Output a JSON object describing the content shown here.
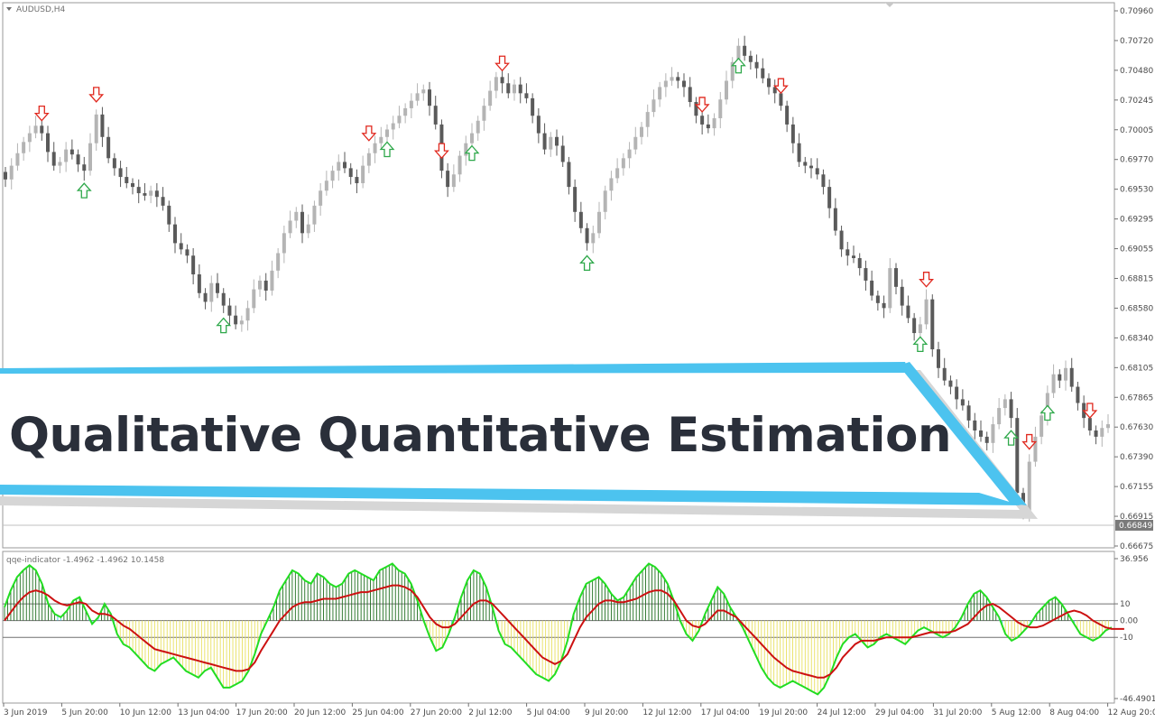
{
  "window": {
    "symbol_label": "AUDUSD,H4",
    "indicator_label": "qqe-indicator -1.4962 -1.4962 10.1458"
  },
  "banner": {
    "title": "Qualitative Quantitative Estimation"
  },
  "price_axis": {
    "ticks": [
      "0.70960",
      "0.70720",
      "0.70480",
      "0.70245",
      "0.70005",
      "0.69770",
      "0.69530",
      "0.69295",
      "0.69055",
      "0.68815",
      "0.68580",
      "0.68340",
      "0.68105",
      "0.67865",
      "0.67630",
      "0.67390",
      "0.67155",
      "0.66915",
      "0.66675"
    ],
    "current_price": "0.66849"
  },
  "indicator_axis": {
    "ticks": [
      "36.956",
      "10",
      "0.00",
      "-10",
      "-46.4901"
    ]
  },
  "time_axis": {
    "labels": [
      "3 Jun 2019",
      "5 Jun 20:00",
      "10 Jun 12:00",
      "13 Jun 04:00",
      "17 Jun 20:00",
      "20 Jun 12:00",
      "25 Jun 04:00",
      "27 Jun 20:00",
      "2 Jul 12:00",
      "5 Jul 04:00",
      "9 Jul 20:00",
      "12 Jul 12:00",
      "17 Jul 04:00",
      "19 Jul 20:00",
      "24 Jul 12:00",
      "29 Jul 04:00",
      "31 Jul 20:00",
      "5 Aug 12:00",
      "8 Aug 04:00",
      "12 Aug 20:00"
    ]
  },
  "colors": {
    "banner_accent": "#4cc3ef",
    "banner_text": "#2a2f3a",
    "bull_candle": "#b4b4b4",
    "bear_candle": "#5a5a5a",
    "up_arrow": "#2ea84a",
    "down_arrow": "#e0281e",
    "qqe_fast": "#22dd22",
    "qqe_slow": "#cc1111",
    "hist_positive": "#1f6e1f",
    "hist_negative": "#e8e060",
    "hist_weak": "#40c8e0"
  },
  "chart_data": [
    {
      "type": "candlestick",
      "title": "AUDUSD,H4",
      "xlabel": "",
      "ylabel": "",
      "ylim": [
        0.66675,
        0.7096
      ],
      "close_path": [
        0.6961,
        0.6972,
        0.6982,
        0.6991,
        0.6998,
        0.7004,
        0.6998,
        0.6983,
        0.6972,
        0.6975,
        0.6985,
        0.6981,
        0.6973,
        0.6968,
        0.699,
        0.7013,
        0.6995,
        0.6978,
        0.697,
        0.6963,
        0.6958,
        0.6955,
        0.695,
        0.6948,
        0.6952,
        0.6947,
        0.694,
        0.6925,
        0.691,
        0.6905,
        0.69,
        0.6885,
        0.687,
        0.6863,
        0.6878,
        0.687,
        0.686,
        0.6852,
        0.6845,
        0.6848,
        0.6858,
        0.6873,
        0.688,
        0.6872,
        0.6888,
        0.6902,
        0.6918,
        0.6928,
        0.6935,
        0.6918,
        0.6925,
        0.694,
        0.6952,
        0.696,
        0.6968,
        0.6975,
        0.697,
        0.6963,
        0.6958,
        0.6972,
        0.6982,
        0.699,
        0.6995,
        0.7001,
        0.7006,
        0.7012,
        0.7018,
        0.7024,
        0.703,
        0.7033,
        0.702,
        0.7005,
        0.6968,
        0.6955,
        0.6965,
        0.698,
        0.699,
        0.6998,
        0.7008,
        0.702,
        0.7032,
        0.7043,
        0.7038,
        0.703,
        0.7037,
        0.703,
        0.7026,
        0.7012,
        0.6998,
        0.6985,
        0.6995,
        0.6988,
        0.6975,
        0.6955,
        0.6935,
        0.6922,
        0.691,
        0.6918,
        0.6935,
        0.6952,
        0.6962,
        0.697,
        0.6978,
        0.6985,
        0.6995,
        0.7003,
        0.7015,
        0.7025,
        0.7035,
        0.704,
        0.7043,
        0.704,
        0.7035,
        0.7023,
        0.7012,
        0.7005,
        0.7002,
        0.701,
        0.7025,
        0.704,
        0.7055,
        0.7068,
        0.706,
        0.7055,
        0.705,
        0.7042,
        0.7035,
        0.703,
        0.702,
        0.7005,
        0.699,
        0.6975,
        0.6972,
        0.697,
        0.6965,
        0.6955,
        0.6938,
        0.692,
        0.6905,
        0.69,
        0.6898,
        0.689,
        0.688,
        0.6868,
        0.6862,
        0.6858,
        0.689,
        0.6875,
        0.686,
        0.685,
        0.6838,
        0.6845,
        0.6865,
        0.6825,
        0.681,
        0.68,
        0.6795,
        0.6785,
        0.678,
        0.6768,
        0.676,
        0.6755,
        0.675,
        0.6765,
        0.6778,
        0.6785,
        0.677,
        0.671,
        0.6695,
        0.6735,
        0.6755,
        0.6772,
        0.679,
        0.6805,
        0.68,
        0.681,
        0.6795,
        0.6782,
        0.677,
        0.676,
        0.6755,
        0.6762,
        0.6765
      ],
      "signals": [
        {
          "type": "sell",
          "index": 6
        },
        {
          "type": "buy",
          "index": 13
        },
        {
          "type": "sell",
          "index": 15
        },
        {
          "type": "buy",
          "index": 36
        },
        {
          "type": "sell",
          "index": 60
        },
        {
          "type": "buy",
          "index": 63
        },
        {
          "type": "sell",
          "index": 72
        },
        {
          "type": "buy",
          "index": 77
        },
        {
          "type": "sell",
          "index": 82
        },
        {
          "type": "buy",
          "index": 96
        },
        {
          "type": "sell",
          "index": 115
        },
        {
          "type": "buy",
          "index": 121
        },
        {
          "type": "sell",
          "index": 128
        },
        {
          "type": "sell",
          "index": 152
        },
        {
          "type": "buy",
          "index": 151
        },
        {
          "type": "buy",
          "index": 166
        },
        {
          "type": "sell",
          "index": 169
        },
        {
          "type": "buy",
          "index": 172
        },
        {
          "type": "sell",
          "index": 179
        }
      ]
    },
    {
      "type": "line",
      "title": "qqe-indicator -1.4962 -1.4962 10.1458",
      "xlabel": "",
      "ylabel": "",
      "ylim": [
        -46.4901,
        36.956
      ],
      "levels": [
        10,
        0,
        -10
      ],
      "series": [
        {
          "values": [
            8,
            18,
            26,
            30,
            33,
            30,
            22,
            10,
            4,
            2,
            6,
            12,
            14,
            6,
            -2,
            2,
            10,
            4,
            -8,
            -14,
            -16,
            -20,
            -24,
            -28,
            -30,
            -26,
            -24,
            -22,
            -26,
            -30,
            -32,
            -34,
            -30,
            -28,
            -34,
            -40,
            -40,
            -38,
            -36,
            -30,
            -20,
            -8,
            0,
            8,
            18,
            24,
            30,
            28,
            24,
            22,
            28,
            26,
            22,
            20,
            22,
            28,
            30,
            28,
            26,
            24,
            30,
            32,
            34,
            30,
            28,
            22,
            12,
            0,
            -10,
            -18,
            -16,
            -8,
            2,
            14,
            24,
            30,
            28,
            20,
            8,
            -6,
            -14,
            -16,
            -20,
            -24,
            -28,
            -32,
            -34,
            -36,
            -32,
            -24,
            -12,
            4,
            14,
            22,
            24,
            26,
            22,
            16,
            12,
            14,
            20,
            26,
            30,
            34,
            32,
            28,
            22,
            12,
            0,
            -8,
            -12,
            -6,
            4,
            12,
            20,
            16,
            8,
            2,
            -4,
            -12,
            -20,
            -28,
            -34,
            -38,
            -40,
            -38,
            -36,
            -38,
            -40,
            -42,
            -44,
            -40,
            -32,
            -22,
            -14,
            -10,
            -8,
            -12,
            -16,
            -14,
            -10,
            -8,
            -10,
            -12,
            -14,
            -10,
            -6,
            -4,
            -6,
            -8,
            -10,
            -8,
            -4,
            2,
            10,
            16,
            18,
            14,
            8,
            2,
            -8,
            -12,
            -10,
            -6,
            -2,
            4,
            8,
            12,
            14,
            10,
            4,
            -2,
            -8,
            -10,
            -12,
            -10,
            -6,
            -4
          ]
        },
        {
          "values": [
            0,
            5,
            10,
            14,
            17,
            18,
            17,
            15,
            12,
            10,
            9,
            10,
            11,
            10,
            6,
            4,
            4,
            3,
            0,
            -3,
            -5,
            -8,
            -11,
            -14,
            -17,
            -18,
            -19,
            -20,
            -21,
            -22,
            -23,
            -24,
            -25,
            -26,
            -27,
            -28,
            -29,
            -30,
            -30,
            -29,
            -25,
            -18,
            -12,
            -6,
            0,
            4,
            8,
            10,
            11,
            11,
            12,
            13,
            13,
            13,
            14,
            15,
            16,
            17,
            17,
            18,
            19,
            20,
            21,
            21,
            20,
            18,
            14,
            8,
            2,
            -2,
            -4,
            -4,
            -2,
            2,
            6,
            10,
            12,
            12,
            10,
            6,
            2,
            -2,
            -6,
            -10,
            -14,
            -18,
            -22,
            -24,
            -26,
            -24,
            -20,
            -12,
            -4,
            2,
            6,
            10,
            12,
            12,
            11,
            11,
            12,
            13,
            15,
            17,
            18,
            18,
            16,
            12,
            6,
            0,
            -3,
            -4,
            -2,
            2,
            6,
            6,
            4,
            2,
            -2,
            -6,
            -10,
            -14,
            -18,
            -22,
            -25,
            -28,
            -30,
            -31,
            -32,
            -33,
            -34,
            -34,
            -32,
            -28,
            -22,
            -18,
            -14,
            -12,
            -12,
            -12,
            -11,
            -10,
            -10,
            -10,
            -10,
            -10,
            -9,
            -8,
            -7,
            -7,
            -7,
            -7,
            -6,
            -4,
            -2,
            2,
            6,
            9,
            10,
            8,
            5,
            2,
            -1,
            -3,
            -4,
            -4,
            -3,
            -1,
            1,
            3,
            5,
            6,
            5,
            3,
            0,
            -2,
            -4,
            -5,
            -5,
            -5
          ]
        }
      ]
    }
  ]
}
